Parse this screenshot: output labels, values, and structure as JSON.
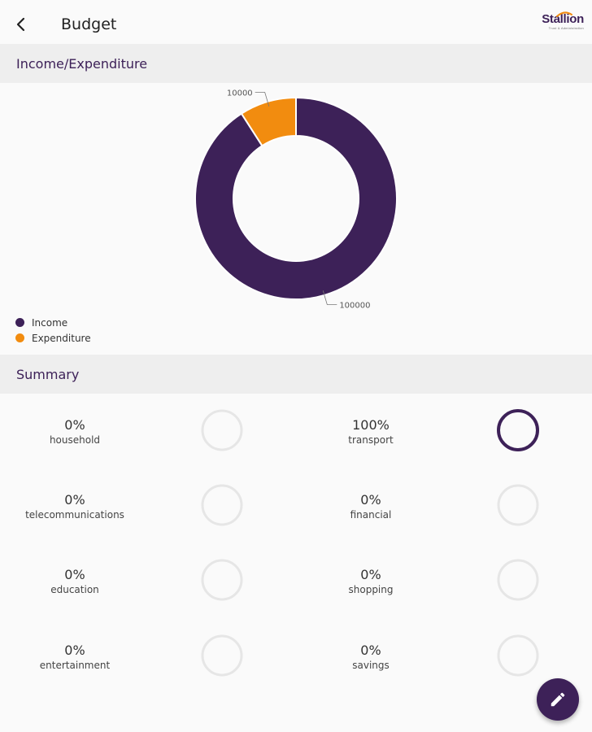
{
  "header": {
    "title": "Budget",
    "logo_text": "Stallion",
    "logo_subtitle": "Trust & Administration"
  },
  "colors": {
    "primary": "#3d2158",
    "accent": "#f28c0f",
    "ring_empty": "#e6e6e6"
  },
  "sections": {
    "income_expenditure": "Income/Expenditure",
    "summary": "Summary"
  },
  "chart_data": {
    "type": "pie",
    "donut": true,
    "categories": [
      "Income",
      "Expenditure"
    ],
    "values": [
      100000,
      10000
    ],
    "labels": [
      "100000",
      "10000"
    ],
    "colors": [
      "#3d2158",
      "#f28c0f"
    ],
    "legend_position": "bottom-left"
  },
  "legend": [
    {
      "label": "Income",
      "color": "#3d2158"
    },
    {
      "label": "Expenditure",
      "color": "#f28c0f"
    }
  ],
  "summary": [
    {
      "percent": "0%",
      "value": 0,
      "category": "household"
    },
    {
      "percent": "100%",
      "value": 100,
      "category": "transport"
    },
    {
      "percent": "0%",
      "value": 0,
      "category": "telecommunications"
    },
    {
      "percent": "0%",
      "value": 0,
      "category": "financial"
    },
    {
      "percent": "0%",
      "value": 0,
      "category": "education"
    },
    {
      "percent": "0%",
      "value": 0,
      "category": "shopping"
    },
    {
      "percent": "0%",
      "value": 0,
      "category": "entertainment"
    },
    {
      "percent": "0%",
      "value": 0,
      "category": "savings"
    }
  ],
  "icons": {
    "back": "arrow-left-icon",
    "fab": "pencil-icon"
  }
}
